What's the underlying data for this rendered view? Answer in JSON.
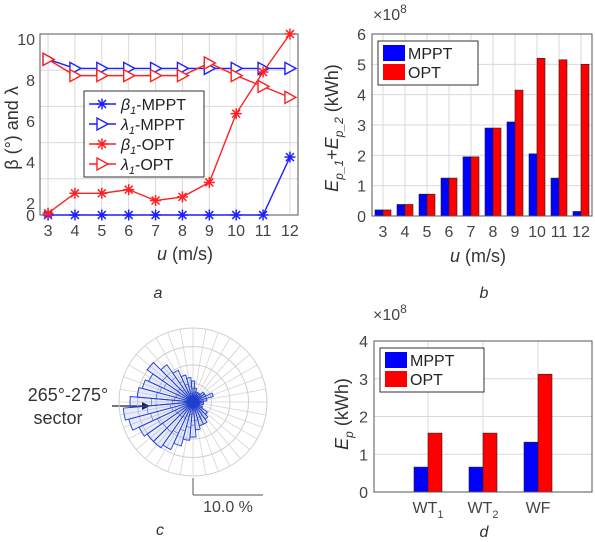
{
  "panel_labels": [
    "a",
    "b",
    "c",
    "d"
  ],
  "chart_data": [
    {
      "id": "a",
      "type": "line",
      "x": [
        3,
        4,
        5,
        6,
        7,
        8,
        9,
        10,
        11,
        12
      ],
      "ylabel": "β (°) and λ",
      "xlabel_var": "u",
      "xlabel_unit": " (m/s)",
      "ylim": [
        0,
        10
      ],
      "yticks": [
        0,
        2,
        4,
        6,
        8,
        10
      ],
      "grid": true,
      "legend_placement": "center",
      "series": [
        {
          "sym": "β",
          "sub": "1",
          "suffix": "-MPPT",
          "color": "#1f1fff",
          "marker": "star",
          "values": [
            0,
            0,
            0,
            0,
            0,
            0,
            0,
            0,
            0,
            3.2
          ]
        },
        {
          "sym": "λ",
          "sub": "1",
          "suffix": "-MPPT",
          "color": "#1f1fff",
          "marker": "triangle-right",
          "values": [
            8.6,
            8.1,
            8.1,
            8.1,
            8.1,
            8.1,
            8.1,
            8.1,
            8.1,
            8.1
          ]
        },
        {
          "sym": "β",
          "sub": "1",
          "suffix": "-OPT",
          "color": "#ff2020",
          "marker": "star",
          "values": [
            0.1,
            1.2,
            1.2,
            1.4,
            0.8,
            1.0,
            1.8,
            5.6,
            7.9,
            10.0
          ]
        },
        {
          "sym": "λ",
          "sub": "1",
          "suffix": "-OPT",
          "color": "#ff2020",
          "marker": "triangle-right",
          "values": [
            8.6,
            7.7,
            7.7,
            7.7,
            7.7,
            7.7,
            8.4,
            7.7,
            7.1,
            6.5
          ]
        }
      ]
    },
    {
      "id": "b",
      "type": "bar",
      "categories": [
        "3",
        "4",
        "5",
        "6",
        "7",
        "8",
        "9",
        "10",
        "11",
        "12"
      ],
      "xlabel_var": "u",
      "xlabel_unit": " (m/s)",
      "ylabel": "E_{p_1}+E_{p_2} (kWh)",
      "ylim": [
        0,
        6
      ],
      "yticks": [
        0,
        1,
        2,
        3,
        4,
        5,
        6
      ],
      "multiplier": "×10",
      "multiplier_exp": "8",
      "grid": true,
      "legend_placement": "top-left",
      "series": [
        {
          "name": "MPPT",
          "color": "#0000ff",
          "values": [
            0.2,
            0.38,
            0.72,
            1.25,
            1.95,
            2.9,
            3.1,
            2.05,
            1.25,
            0.15
          ]
        },
        {
          "name": "OPT",
          "color": "#ff0000",
          "values": [
            0.2,
            0.38,
            0.72,
            1.25,
            1.95,
            2.9,
            4.15,
            5.2,
            5.15,
            5.0
          ]
        }
      ]
    },
    {
      "id": "c",
      "type": "polar-histogram",
      "annotation_line1": "265°-275°",
      "annotation_line2": "sector",
      "scale_label": "10.0 %",
      "color": "#1f3fcf",
      "sectors_deg": [
        0,
        10,
        20,
        30,
        40,
        50,
        60,
        70,
        80,
        90,
        100,
        110,
        120,
        130,
        140,
        150,
        160,
        170,
        180,
        190,
        200,
        210,
        220,
        230,
        240,
        250,
        260,
        270,
        280,
        290,
        300,
        310,
        320,
        330,
        340,
        350
      ],
      "values_pct": [
        3.0,
        2.0,
        1.5,
        1.5,
        1.5,
        2.0,
        2.0,
        3.0,
        2.0,
        1.5,
        1.5,
        1.0,
        1.5,
        2.5,
        3.0,
        3.5,
        3.5,
        4.0,
        5.0,
        5.5,
        6.5,
        7.5,
        8.0,
        8.0,
        8.5,
        9.5,
        10.0,
        9.0,
        8.0,
        7.5,
        7.0,
        8.0,
        6.5,
        5.0,
        4.0,
        3.5
      ]
    },
    {
      "id": "d",
      "type": "bar",
      "categories": [
        {
          "base": "WT",
          "sub": "1"
        },
        {
          "base": "WT",
          "sub": "2"
        },
        {
          "base": "WF",
          "sub": ""
        }
      ],
      "ylabel": "E_p (kWh)",
      "ylim": [
        0,
        4
      ],
      "yticks": [
        0,
        1,
        2,
        3,
        4
      ],
      "multiplier": "×10",
      "multiplier_exp": "8",
      "grid": true,
      "legend_placement": "top-left",
      "series": [
        {
          "name": "MPPT",
          "color": "#0000ff",
          "values": [
            0.66,
            0.66,
            1.32
          ]
        },
        {
          "name": "OPT",
          "color": "#ff0000",
          "values": [
            1.56,
            1.56,
            3.12
          ]
        }
      ]
    }
  ]
}
